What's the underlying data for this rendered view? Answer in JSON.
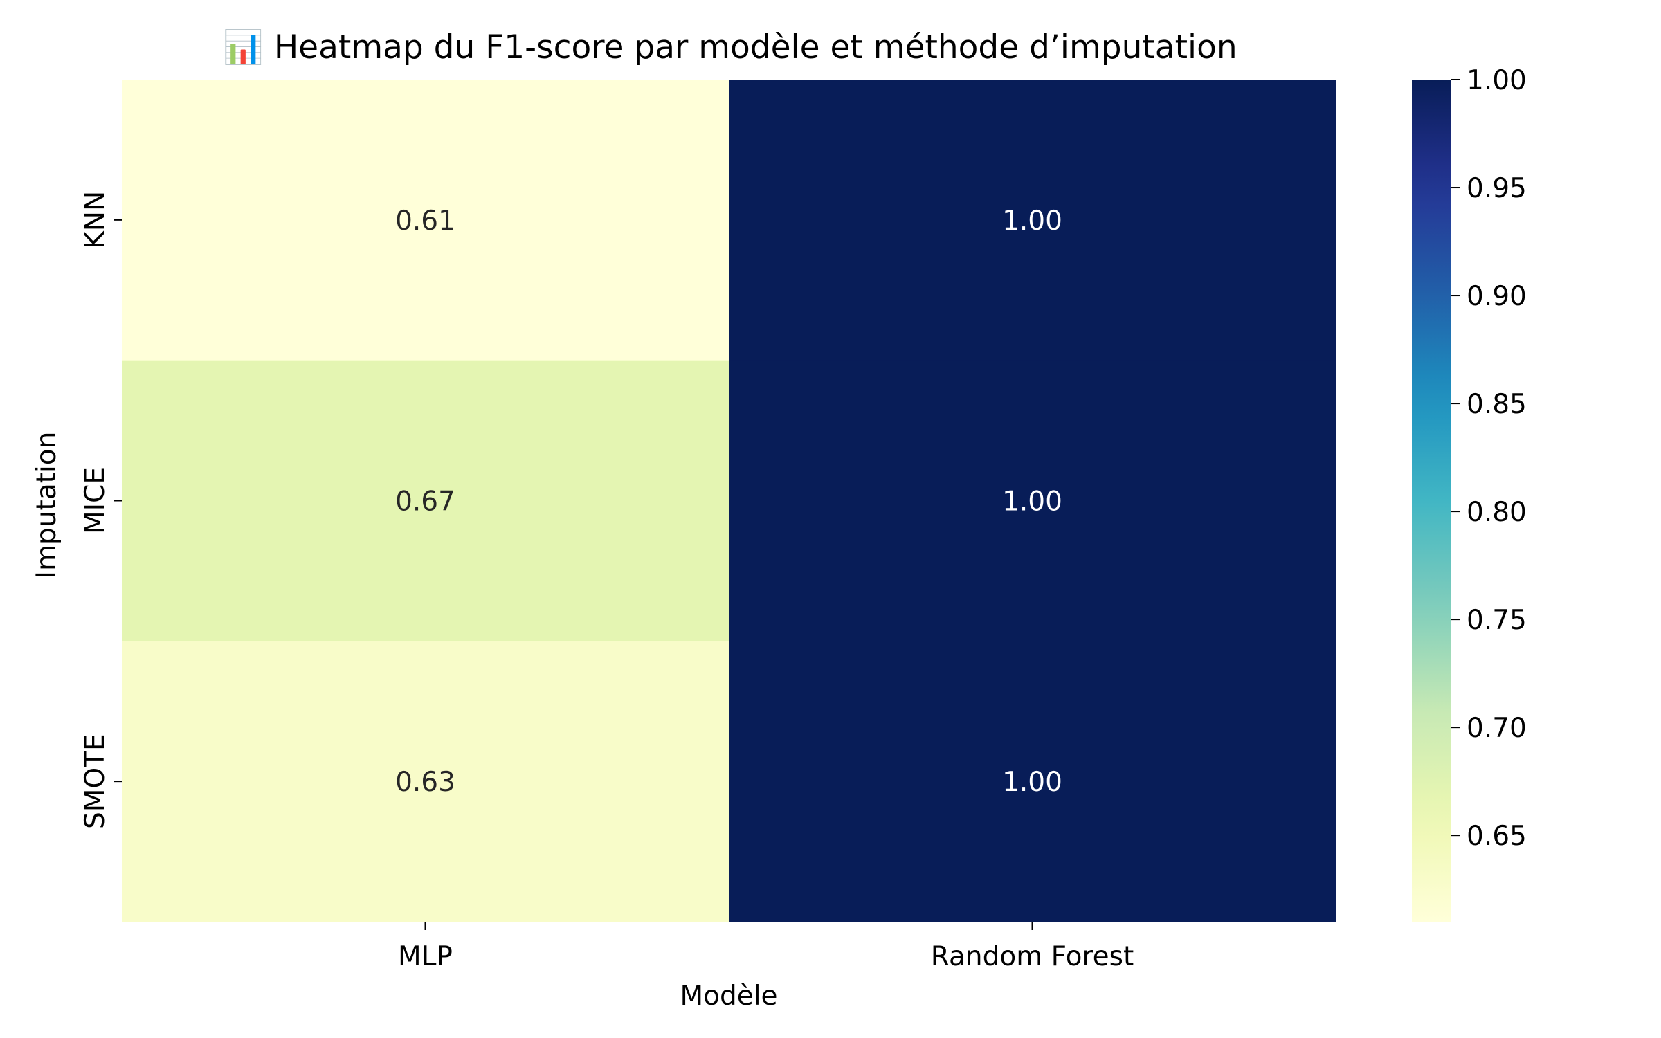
{
  "chart_data": {
    "type": "heatmap",
    "title": "📊 Heatmap du F1-score par modèle et méthode d’imputation",
    "xlabel": "Modèle",
    "ylabel": "Imputation",
    "x_categories": [
      "MLP",
      "Random Forest"
    ],
    "y_categories": [
      "KNN",
      "MICE",
      "SMOTE"
    ],
    "values": [
      [
        0.61,
        1.0
      ],
      [
        0.67,
        1.0
      ],
      [
        0.63,
        1.0
      ]
    ],
    "value_labels": [
      [
        "0.61",
        "1.00"
      ],
      [
        "0.67",
        "1.00"
      ],
      [
        "0.63",
        "1.00"
      ]
    ],
    "colorbar": {
      "min": 0.61,
      "max": 1.0,
      "ticks": [
        0.65,
        0.7,
        0.75,
        0.8,
        0.85,
        0.9,
        0.95,
        1.0
      ],
      "tick_labels": [
        "0.65",
        "0.70",
        "0.75",
        "0.80",
        "0.85",
        "0.90",
        "0.95",
        "1.00"
      ],
      "colormap": "YlGnBu"
    },
    "grid": false,
    "legend": "colorbar-right"
  }
}
